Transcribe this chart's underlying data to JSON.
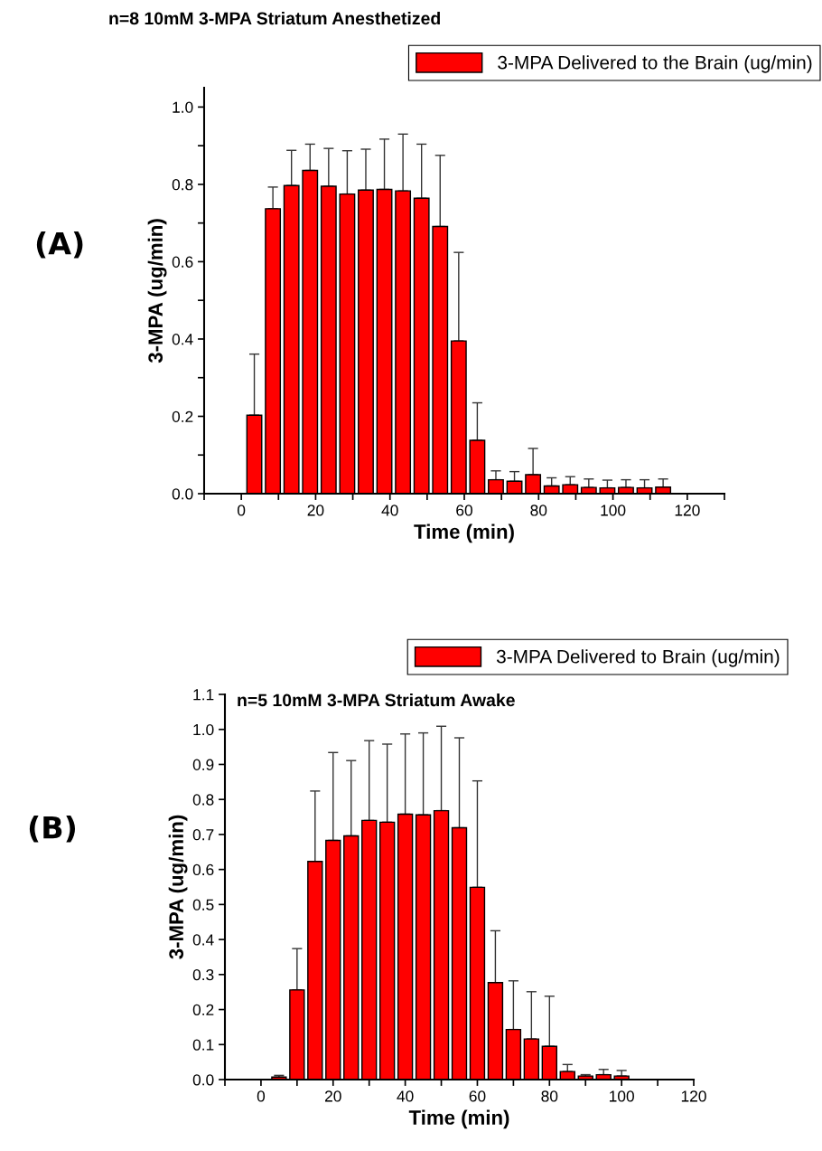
{
  "chart_data": [
    {
      "type": "bar",
      "title": "n=8 10mM 3-MPA Striatum Anesthetized",
      "xlabel": "Time (min)",
      "ylabel": "3-MPA (ug/min)",
      "annotations": [
        "(A)"
      ],
      "legend": "top right",
      "grid": false,
      "x": [
        3.5,
        8.5,
        13.5,
        18.5,
        23.5,
        28.5,
        33.5,
        38.5,
        43.5,
        48.5,
        53.5,
        58.5,
        63.5,
        68.5,
        73.5,
        78.5,
        83.5,
        88.5,
        93.5,
        98.5,
        103.5,
        108.5,
        113.5
      ],
      "series": [
        {
          "name": "3-MPA Delivered to the Brain (ug/min)",
          "color": "#ff0000",
          "values": [
            0.203,
            0.737,
            0.797,
            0.836,
            0.795,
            0.775,
            0.785,
            0.787,
            0.783,
            0.764,
            0.691,
            0.395,
            0.138,
            0.036,
            0.032,
            0.049,
            0.02,
            0.023,
            0.016,
            0.015,
            0.016,
            0.015,
            0.017
          ],
          "errors": [
            [
              0.203,
              0.361
            ],
            [
              0.737,
              0.793
            ],
            [
              0.797,
              0.888
            ],
            [
              0.836,
              0.904
            ],
            [
              0.795,
              0.893
            ],
            [
              0.775,
              0.887
            ],
            [
              0.785,
              0.891
            ],
            [
              0.787,
              0.917
            ],
            [
              0.783,
              0.93
            ],
            [
              0.764,
              0.904
            ],
            [
              0.691,
              0.875
            ],
            [
              0.395,
              0.624
            ],
            [
              0.138,
              0.235
            ],
            [
              0.036,
              0.059
            ],
            [
              0.032,
              0.057
            ],
            [
              0.049,
              0.117
            ],
            [
              0.02,
              0.041
            ],
            [
              0.023,
              0.044
            ],
            [
              0.016,
              0.038
            ],
            [
              0.015,
              0.035
            ],
            [
              0.016,
              0.036
            ],
            [
              0.015,
              0.036
            ],
            [
              0.017,
              0.038
            ]
          ]
        }
      ],
      "xlim": [
        -10,
        130
      ],
      "xticks": [
        {
          "value": -10,
          "label": null
        },
        0,
        {
          "value": 10,
          "label": null
        },
        20,
        {
          "value": 30,
          "label": null
        },
        40,
        {
          "value": 50,
          "label": null
        },
        60,
        {
          "value": 70,
          "label": null
        },
        80,
        {
          "value": 90,
          "label": null
        },
        100,
        {
          "value": 110,
          "label": null
        },
        120,
        {
          "value": 130,
          "label": null
        }
      ],
      "ylim": [
        0,
        1.05
      ],
      "yticks": [
        "0.0",
        {
          "value": 0.1,
          "label": null
        },
        0.2,
        {
          "value": 0.3,
          "label": null
        },
        0.4,
        {
          "value": 0.5,
          "label": null
        },
        0.6,
        {
          "value": 0.7,
          "label": null
        },
        0.8,
        {
          "value": 0.9,
          "label": null
        },
        {
          "value": 1.0,
          "label": "1.0"
        }
      ]
    },
    {
      "type": "bar",
      "title": "n=5 10mM 3-MPA Striatum Awake",
      "xlabel": "Time (min)",
      "ylabel": "3-MPA (ug/min)",
      "annotations": [
        "(B)"
      ],
      "legend": "top right",
      "grid": false,
      "x": [
        5,
        10,
        15,
        20,
        25,
        30,
        35,
        40,
        45,
        50,
        55,
        60,
        65,
        70,
        75,
        80,
        85,
        90,
        95,
        100
      ],
      "series": [
        {
          "name": "3-MPA Delivered to Brain (ug/min)",
          "color": "#ff0000",
          "values": [
            0.007,
            0.256,
            0.623,
            0.683,
            0.696,
            0.74,
            0.735,
            0.758,
            0.756,
            0.768,
            0.719,
            0.549,
            0.277,
            0.143,
            0.116,
            0.095,
            0.023,
            0.01,
            0.014,
            0.01
          ],
          "errors": [
            [
              0.007,
              0.012
            ],
            [
              0.256,
              0.374
            ],
            [
              0.623,
              0.824
            ],
            [
              0.683,
              0.934
            ],
            [
              0.696,
              0.911
            ],
            [
              0.74,
              0.968
            ],
            [
              0.735,
              0.958
            ],
            [
              0.758,
              0.987
            ],
            [
              0.756,
              0.99
            ],
            [
              0.768,
              1.009
            ],
            [
              0.719,
              0.976
            ],
            [
              0.549,
              0.853
            ],
            [
              0.277,
              0.425
            ],
            [
              0.143,
              0.282
            ],
            [
              0.116,
              0.251
            ],
            [
              0.095,
              0.238
            ],
            [
              0.023,
              0.043
            ],
            [
              0.01,
              0.014
            ],
            [
              0.014,
              0.029
            ],
            [
              0.01,
              0.026
            ]
          ]
        }
      ],
      "xlim": [
        -10,
        120
      ],
      "xticks": [
        {
          "value": -10,
          "label": null
        },
        0,
        {
          "value": 10,
          "label": null
        },
        20,
        {
          "value": 30,
          "label": null
        },
        40,
        {
          "value": 50,
          "label": null
        },
        60,
        {
          "value": 70,
          "label": null
        },
        80,
        {
          "value": 90,
          "label": null
        },
        100,
        {
          "value": 110,
          "label": null
        },
        120
      ],
      "ylim": [
        0,
        1.1
      ],
      "yticks": [
        {
          "value": 0,
          "label": "0.0"
        },
        0.1,
        0.2,
        0.3,
        0.4,
        0.5,
        0.6,
        0.7,
        0.8,
        0.9,
        {
          "value": 1.0,
          "label": "1.0"
        },
        1.1
      ]
    }
  ]
}
